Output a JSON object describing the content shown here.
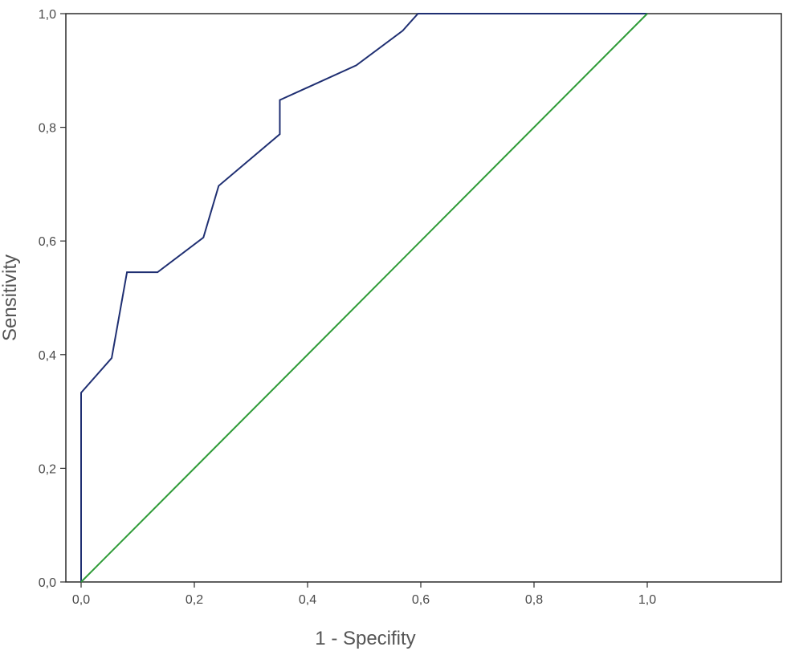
{
  "chart_data": {
    "type": "line",
    "title": "",
    "xlabel": "1 - Specifity",
    "ylabel": "Sensitivity",
    "xlim": [
      0,
      1.24
    ],
    "ylim": [
      0,
      1
    ],
    "grid": false,
    "x_ticks": [
      {
        "value": 0.0,
        "label": "0,0"
      },
      {
        "value": 0.2,
        "label": "0,2"
      },
      {
        "value": 0.4,
        "label": "0,4"
      },
      {
        "value": 0.6,
        "label": "0,6"
      },
      {
        "value": 0.8,
        "label": "0,8"
      },
      {
        "value": 1.0,
        "label": "1,0"
      }
    ],
    "y_ticks": [
      {
        "value": 0.0,
        "label": "0,0"
      },
      {
        "value": 0.2,
        "label": "0,2"
      },
      {
        "value": 0.4,
        "label": "0,4"
      },
      {
        "value": 0.6,
        "label": "0,6"
      },
      {
        "value": 0.8,
        "label": "0,8"
      },
      {
        "value": 1.0,
        "label": "1,0"
      }
    ],
    "series": [
      {
        "color": "#1f2f72",
        "x": [
          0.0,
          0.0,
          0.054,
          0.081,
          0.135,
          0.216,
          0.243,
          0.351,
          0.351,
          0.486,
          0.568,
          0.595,
          1.0
        ],
        "y": [
          0.0,
          0.333,
          0.394,
          0.545,
          0.545,
          0.606,
          0.697,
          0.788,
          0.848,
          0.909,
          0.97,
          1.0,
          1.0
        ]
      },
      {
        "color": "#2e9b37",
        "x": [
          0.0,
          1.0
        ],
        "y": [
          0.0,
          1.0
        ]
      }
    ]
  }
}
